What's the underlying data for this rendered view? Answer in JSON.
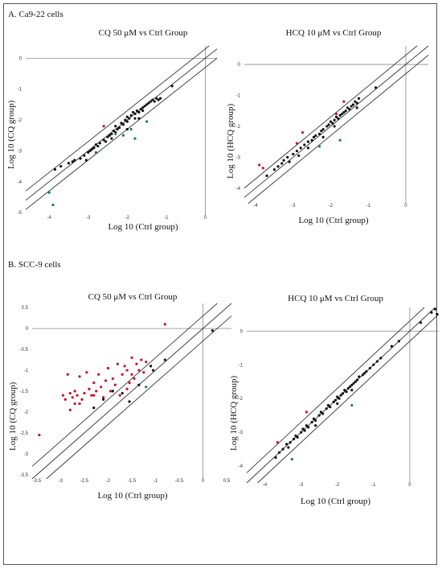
{
  "panels": {
    "a_label": "A. Ca9-22 cells",
    "b_label": "B. SCC-9 cells"
  },
  "colors": {
    "ref_line": "#333333",
    "axis": "#8a8a8a",
    "black": "#111111",
    "red": "#c8102e",
    "green": "#1a7a66"
  },
  "chart_data": [
    {
      "type": "scatter",
      "title": "CQ 50 μM vs Ctrl Group",
      "xlabel": "Log 10 (Ctrl group)",
      "ylabel": "Log 10 (CQ group)",
      "xlim": [
        -4.6,
        0.3
      ],
      "ylim": [
        -5.1,
        0.4
      ],
      "xticks": [
        -4,
        -3,
        -2,
        -1,
        0
      ],
      "yticks": [
        0,
        -1,
        -2,
        -3,
        -4,
        -5
      ],
      "series": [
        {
          "color": "black",
          "points": [
            [
              -3.85,
              -3.6
            ],
            [
              -3.7,
              -3.5
            ],
            [
              -3.5,
              -3.4
            ],
            [
              -3.4,
              -3.35
            ],
            [
              -3.35,
              -3.3
            ],
            [
              -3.2,
              -3.25
            ],
            [
              -3.1,
              -3.15
            ],
            [
              -3.05,
              -3.3
            ],
            [
              -3.0,
              -3.05
            ],
            [
              -2.95,
              -3.0
            ],
            [
              -2.9,
              -2.95
            ],
            [
              -2.85,
              -2.9
            ],
            [
              -2.8,
              -2.8
            ],
            [
              -2.75,
              -2.85
            ],
            [
              -2.7,
              -2.75
            ],
            [
              -2.6,
              -2.65
            ],
            [
              -2.55,
              -2.7
            ],
            [
              -2.5,
              -2.55
            ],
            [
              -2.45,
              -2.5
            ],
            [
              -2.4,
              -2.45
            ],
            [
              -2.35,
              -2.35
            ],
            [
              -2.3,
              -2.4
            ],
            [
              -2.3,
              -2.2
            ],
            [
              -2.25,
              -2.3
            ],
            [
              -2.2,
              -2.25
            ],
            [
              -2.15,
              -2.1
            ],
            [
              -2.1,
              -2.15
            ],
            [
              -2.05,
              -2.0
            ],
            [
              -2.0,
              -2.05
            ],
            [
              -2.0,
              -1.9
            ],
            [
              -1.95,
              -1.95
            ],
            [
              -1.9,
              -1.85
            ],
            [
              -1.85,
              -1.75
            ],
            [
              -1.8,
              -1.8
            ],
            [
              -1.75,
              -1.7
            ],
            [
              -1.7,
              -1.75
            ],
            [
              -1.65,
              -1.65
            ],
            [
              -1.6,
              -1.6
            ],
            [
              -1.55,
              -1.55
            ],
            [
              -1.5,
              -1.5
            ],
            [
              -1.45,
              -1.45
            ],
            [
              -1.4,
              -1.4
            ],
            [
              -1.35,
              -1.35
            ],
            [
              -1.3,
              -1.4
            ],
            [
              -1.25,
              -1.3
            ],
            [
              -1.2,
              -1.35
            ],
            [
              -1.15,
              -1.3
            ],
            [
              -0.85,
              -0.9
            ],
            [
              -2.4,
              -2.6
            ],
            [
              -2.0,
              -2.3
            ],
            [
              -1.7,
              -1.95
            ],
            [
              -1.6,
              -1.7
            ],
            [
              -1.8,
              -1.95
            ]
          ]
        },
        {
          "color": "red",
          "points": [
            [
              -2.6,
              -2.2
            ]
          ]
        },
        {
          "color": "green",
          "points": [
            [
              -4.0,
              -4.35
            ],
            [
              -3.9,
              -4.75
            ],
            [
              -2.8,
              -3.05
            ],
            [
              -2.3,
              -2.45
            ],
            [
              -2.1,
              -2.5
            ],
            [
              -1.9,
              -2.3
            ],
            [
              -1.8,
              -2.6
            ],
            [
              -1.5,
              -2.05
            ]
          ]
        }
      ]
    },
    {
      "type": "scatter",
      "title": "HCQ 10 μM vs Ctrl Group",
      "xlabel": "Log 10 (Ctrl group)",
      "ylabel": "Log 10 (HCQ group)",
      "xlim": [
        -4.3,
        0.6
      ],
      "ylim": [
        -4.5,
        0.6
      ],
      "xticks": [
        -4,
        -3,
        -2,
        -1,
        0
      ],
      "yticks": [
        0,
        -1,
        -2,
        -3,
        -4
      ],
      "series": [
        {
          "color": "black",
          "points": [
            [
              -3.7,
              -3.6
            ],
            [
              -3.5,
              -3.4
            ],
            [
              -3.4,
              -3.3
            ],
            [
              -3.3,
              -3.2
            ],
            [
              -3.25,
              -3.1
            ],
            [
              -3.15,
              -3.0
            ],
            [
              -3.1,
              -3.15
            ],
            [
              -3.0,
              -2.9
            ],
            [
              -2.9,
              -2.8
            ],
            [
              -2.85,
              -2.95
            ],
            [
              -2.8,
              -2.7
            ],
            [
              -2.7,
              -2.6
            ],
            [
              -2.6,
              -2.5
            ],
            [
              -2.5,
              -2.45
            ],
            [
              -2.45,
              -2.35
            ],
            [
              -2.4,
              -2.3
            ],
            [
              -2.3,
              -2.25
            ],
            [
              -2.25,
              -2.15
            ],
            [
              -2.2,
              -2.1
            ],
            [
              -2.1,
              -2.0
            ],
            [
              -2.05,
              -1.95
            ],
            [
              -2.0,
              -1.85
            ],
            [
              -1.95,
              -1.9
            ],
            [
              -1.9,
              -1.8
            ],
            [
              -1.85,
              -1.7
            ],
            [
              -1.8,
              -1.75
            ],
            [
              -1.75,
              -1.65
            ],
            [
              -1.7,
              -1.6
            ],
            [
              -1.65,
              -1.55
            ],
            [
              -1.6,
              -1.5
            ],
            [
              -1.55,
              -1.4
            ],
            [
              -1.5,
              -1.45
            ],
            [
              -1.45,
              -1.35
            ],
            [
              -1.4,
              -1.3
            ],
            [
              -1.35,
              -1.2
            ],
            [
              -1.3,
              -1.25
            ],
            [
              -1.3,
              -1.4
            ],
            [
              -1.25,
              -1.1
            ],
            [
              -0.8,
              -0.75
            ],
            [
              -2.6,
              -2.7
            ],
            [
              -2.2,
              -2.35
            ],
            [
              -1.9,
              -2.0
            ]
          ]
        },
        {
          "color": "red",
          "points": [
            [
              -3.9,
              -3.25
            ],
            [
              -3.8,
              -3.35
            ],
            [
              -2.9,
              -2.55
            ],
            [
              -2.75,
              -2.2
            ],
            [
              -1.85,
              -1.6
            ],
            [
              -1.65,
              -1.2
            ]
          ]
        },
        {
          "color": "green",
          "points": [
            [
              -2.3,
              -2.65
            ],
            [
              -1.75,
              -2.45
            ]
          ]
        }
      ]
    },
    {
      "type": "scatter",
      "title": "CQ 50 μM vs Ctrl Group",
      "xlabel": "Log 10 (Ctrl group)",
      "ylabel": "Log 10 (CQ group)",
      "xlim": [
        -3.6,
        0.6
      ],
      "ylim": [
        -3.6,
        0.6
      ],
      "xticks": [
        -3.5,
        -3,
        -2.5,
        -2,
        -1.5,
        -1,
        -0.5,
        0,
        0.5
      ],
      "yticks": [
        0.5,
        0,
        -0.5,
        -1,
        -1.5,
        -2,
        -2.5,
        -3,
        -3.5
      ],
      "series": [
        {
          "color": "red",
          "points": [
            [
              -3.45,
              -2.55
            ],
            [
              -2.95,
              -1.6
            ],
            [
              -2.9,
              -1.7
            ],
            [
              -2.85,
              -1.1
            ],
            [
              -2.8,
              -1.55
            ],
            [
              -2.75,
              -1.65
            ],
            [
              -2.7,
              -1.5
            ],
            [
              -2.7,
              -1.8
            ],
            [
              -2.65,
              -1.6
            ],
            [
              -2.6,
              -1.15
            ],
            [
              -2.55,
              -1.7
            ],
            [
              -2.5,
              -1.55
            ],
            [
              -2.45,
              -1.05
            ],
            [
              -2.4,
              -1.45
            ],
            [
              -2.35,
              -1.6
            ],
            [
              -2.3,
              -1.3
            ],
            [
              -2.25,
              -1.5
            ],
            [
              -2.2,
              -1.1
            ],
            [
              -2.15,
              -1.4
            ],
            [
              -2.1,
              -1.65
            ],
            [
              -2.05,
              -1.25
            ],
            [
              -2.0,
              -0.95
            ],
            [
              -1.95,
              -1.5
            ],
            [
              -1.9,
              -1.2
            ],
            [
              -1.85,
              -1.35
            ],
            [
              -1.8,
              -0.85
            ],
            [
              -1.75,
              -1.6
            ],
            [
              -1.7,
              -1.1
            ],
            [
              -1.65,
              -0.9
            ],
            [
              -1.6,
              -1.45
            ],
            [
              -1.55,
              -1.3
            ],
            [
              -1.5,
              -0.7
            ],
            [
              -1.45,
              -1.2
            ],
            [
              -1.4,
              -0.85
            ],
            [
              -1.35,
              -1.0
            ],
            [
              -1.3,
              -0.75
            ],
            [
              -1.25,
              -1.05
            ],
            [
              -1.2,
              -0.8
            ],
            [
              -2.8,
              -1.95
            ],
            [
              -2.6,
              -1.8
            ],
            [
              -2.3,
              -1.6
            ],
            [
              -1.6,
              -1.0
            ],
            [
              -1.5,
              -1.1
            ],
            [
              -0.8,
              0.1
            ]
          ]
        },
        {
          "color": "black",
          "points": [
            [
              -2.3,
              -1.9
            ],
            [
              -2.1,
              -1.7
            ],
            [
              -1.9,
              -1.5
            ],
            [
              -1.7,
              -1.55
            ],
            [
              -1.55,
              -1.75
            ],
            [
              -1.35,
              -1.35
            ],
            [
              -1.1,
              -0.9
            ],
            [
              -1.05,
              -1.0
            ],
            [
              -0.8,
              -0.75
            ],
            [
              0.2,
              -0.05
            ]
          ]
        },
        {
          "color": "green",
          "points": [
            [
              -1.2,
              -1.4
            ]
          ]
        }
      ]
    },
    {
      "type": "scatter",
      "title": "HCQ 10 μM vs Ctrl Group",
      "xlabel": "Log 10 (Ctrl group)",
      "ylabel": "Log 10 (HCQ group)",
      "xlim": [
        -4.5,
        0.8
      ],
      "ylim": [
        -4.5,
        0.7
      ],
      "xticks": [
        -4,
        -3,
        -2,
        -1,
        0
      ],
      "yticks": [
        0,
        -1,
        -2,
        -3,
        -4
      ],
      "series": [
        {
          "color": "black",
          "points": [
            [
              -3.7,
              -3.75
            ],
            [
              -3.6,
              -3.6
            ],
            [
              -3.5,
              -3.5
            ],
            [
              -3.4,
              -3.35
            ],
            [
              -3.35,
              -3.45
            ],
            [
              -3.3,
              -3.3
            ],
            [
              -3.2,
              -3.2
            ],
            [
              -3.15,
              -3.1
            ],
            [
              -3.1,
              -3.15
            ],
            [
              -3.0,
              -3.0
            ],
            [
              -2.95,
              -2.9
            ],
            [
              -2.9,
              -2.95
            ],
            [
              -2.85,
              -2.8
            ],
            [
              -2.8,
              -2.85
            ],
            [
              -2.7,
              -2.7
            ],
            [
              -2.65,
              -2.6
            ],
            [
              -2.6,
              -2.65
            ],
            [
              -2.5,
              -2.5
            ],
            [
              -2.45,
              -2.4
            ],
            [
              -2.4,
              -2.45
            ],
            [
              -2.3,
              -2.3
            ],
            [
              -2.25,
              -2.2
            ],
            [
              -2.2,
              -2.25
            ],
            [
              -2.1,
              -2.1
            ],
            [
              -2.05,
              -2.05
            ],
            [
              -2.0,
              -1.95
            ],
            [
              -1.95,
              -2.0
            ],
            [
              -1.9,
              -1.9
            ],
            [
              -1.85,
              -1.85
            ],
            [
              -1.8,
              -1.75
            ],
            [
              -1.75,
              -1.8
            ],
            [
              -1.7,
              -1.7
            ],
            [
              -1.65,
              -1.65
            ],
            [
              -1.6,
              -1.6
            ],
            [
              -1.55,
              -1.55
            ],
            [
              -1.5,
              -1.5
            ],
            [
              -1.45,
              -1.45
            ],
            [
              -1.4,
              -1.35
            ],
            [
              -1.3,
              -1.3
            ],
            [
              -1.25,
              -1.25
            ],
            [
              -1.2,
              -1.2
            ],
            [
              -1.1,
              -1.1
            ],
            [
              -1.0,
              -1.0
            ],
            [
              -0.9,
              -0.9
            ],
            [
              -0.8,
              -0.8
            ],
            [
              -0.5,
              -0.45
            ],
            [
              -0.3,
              -0.3
            ],
            [
              0.3,
              0.25
            ],
            [
              0.6,
              0.55
            ],
            [
              0.7,
              0.65
            ],
            [
              0.75,
              0.5
            ],
            [
              -2.6,
              -2.8
            ],
            [
              -2.0,
              -2.15
            ],
            [
              -1.6,
              -1.75
            ]
          ]
        },
        {
          "color": "red",
          "points": [
            [
              -3.65,
              -3.3
            ],
            [
              -2.85,
              -2.4
            ]
          ]
        },
        {
          "color": "green",
          "points": [
            [
              -3.25,
              -3.8
            ],
            [
              -1.6,
              -2.2
            ]
          ]
        }
      ]
    }
  ]
}
